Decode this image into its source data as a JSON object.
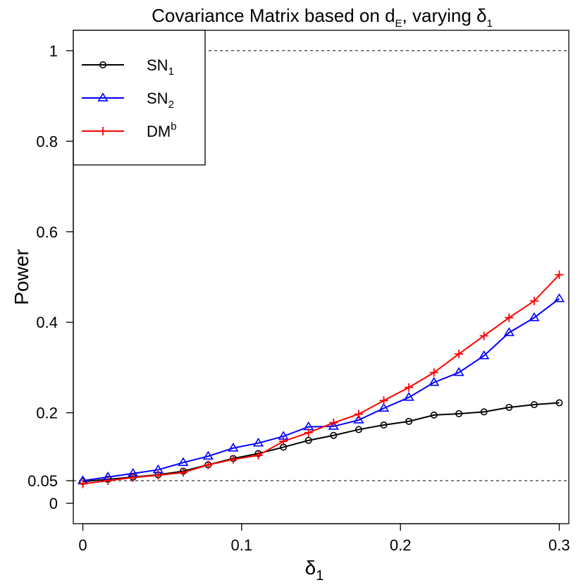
{
  "chart_data": {
    "type": "line",
    "title": {
      "prefix": "Covariance Matrix based on d",
      "prefix_sub": "E",
      "suffix": ", varying δ",
      "suffix_sub": "1"
    },
    "xlabel": {
      "main": "δ",
      "sub": "1"
    },
    "ylabel": "Power",
    "xlim": [
      -0.006,
      0.306
    ],
    "ylim": [
      -0.045,
      1.045
    ],
    "xticks": [
      0,
      0.1,
      0.2,
      0.3
    ],
    "xtick_labels": [
      "0",
      "0.1",
      "0.2",
      "0.3"
    ],
    "yticks": [
      0,
      0.05,
      0.2,
      0.4,
      0.6,
      0.8,
      1
    ],
    "ytick_labels": [
      "0",
      "0.05",
      "0.2",
      "0.4",
      "0.6",
      "0.8",
      "1"
    ],
    "reference_lines": [
      0.05,
      1
    ],
    "grid": false,
    "legend_position": "top-left",
    "x": [
      0,
      0.0158,
      0.0316,
      0.0474,
      0.0632,
      0.0789,
      0.0947,
      0.1105,
      0.1263,
      0.1421,
      0.1579,
      0.1737,
      0.1895,
      0.2053,
      0.2211,
      0.2368,
      0.2526,
      0.2684,
      0.2842,
      0.3
    ],
    "series": [
      {
        "name": "SN",
        "name_sub": "1",
        "name_sup": "",
        "color": "#000000",
        "marker": "circle",
        "values": [
          0.048,
          0.053,
          0.058,
          0.063,
          0.071,
          0.085,
          0.099,
          0.11,
          0.124,
          0.139,
          0.15,
          0.163,
          0.173,
          0.181,
          0.195,
          0.198,
          0.202,
          0.212,
          0.218,
          0.222
        ]
      },
      {
        "name": "SN",
        "name_sub": "2",
        "name_sup": "",
        "color": "#0000ff",
        "marker": "triangle",
        "values": [
          0.05,
          0.058,
          0.066,
          0.074,
          0.09,
          0.104,
          0.122,
          0.133,
          0.148,
          0.169,
          0.17,
          0.184,
          0.21,
          0.234,
          0.267,
          0.289,
          0.326,
          0.377,
          0.41,
          0.452
        ]
      },
      {
        "name": "DM",
        "name_sub": "",
        "name_sup": "b",
        "color": "#ff0000",
        "marker": "plus",
        "values": [
          0.043,
          0.05,
          0.057,
          0.062,
          0.068,
          0.085,
          0.097,
          0.106,
          0.137,
          0.156,
          0.178,
          0.197,
          0.227,
          0.256,
          0.289,
          0.33,
          0.37,
          0.41,
          0.447,
          0.505
        ]
      }
    ]
  }
}
